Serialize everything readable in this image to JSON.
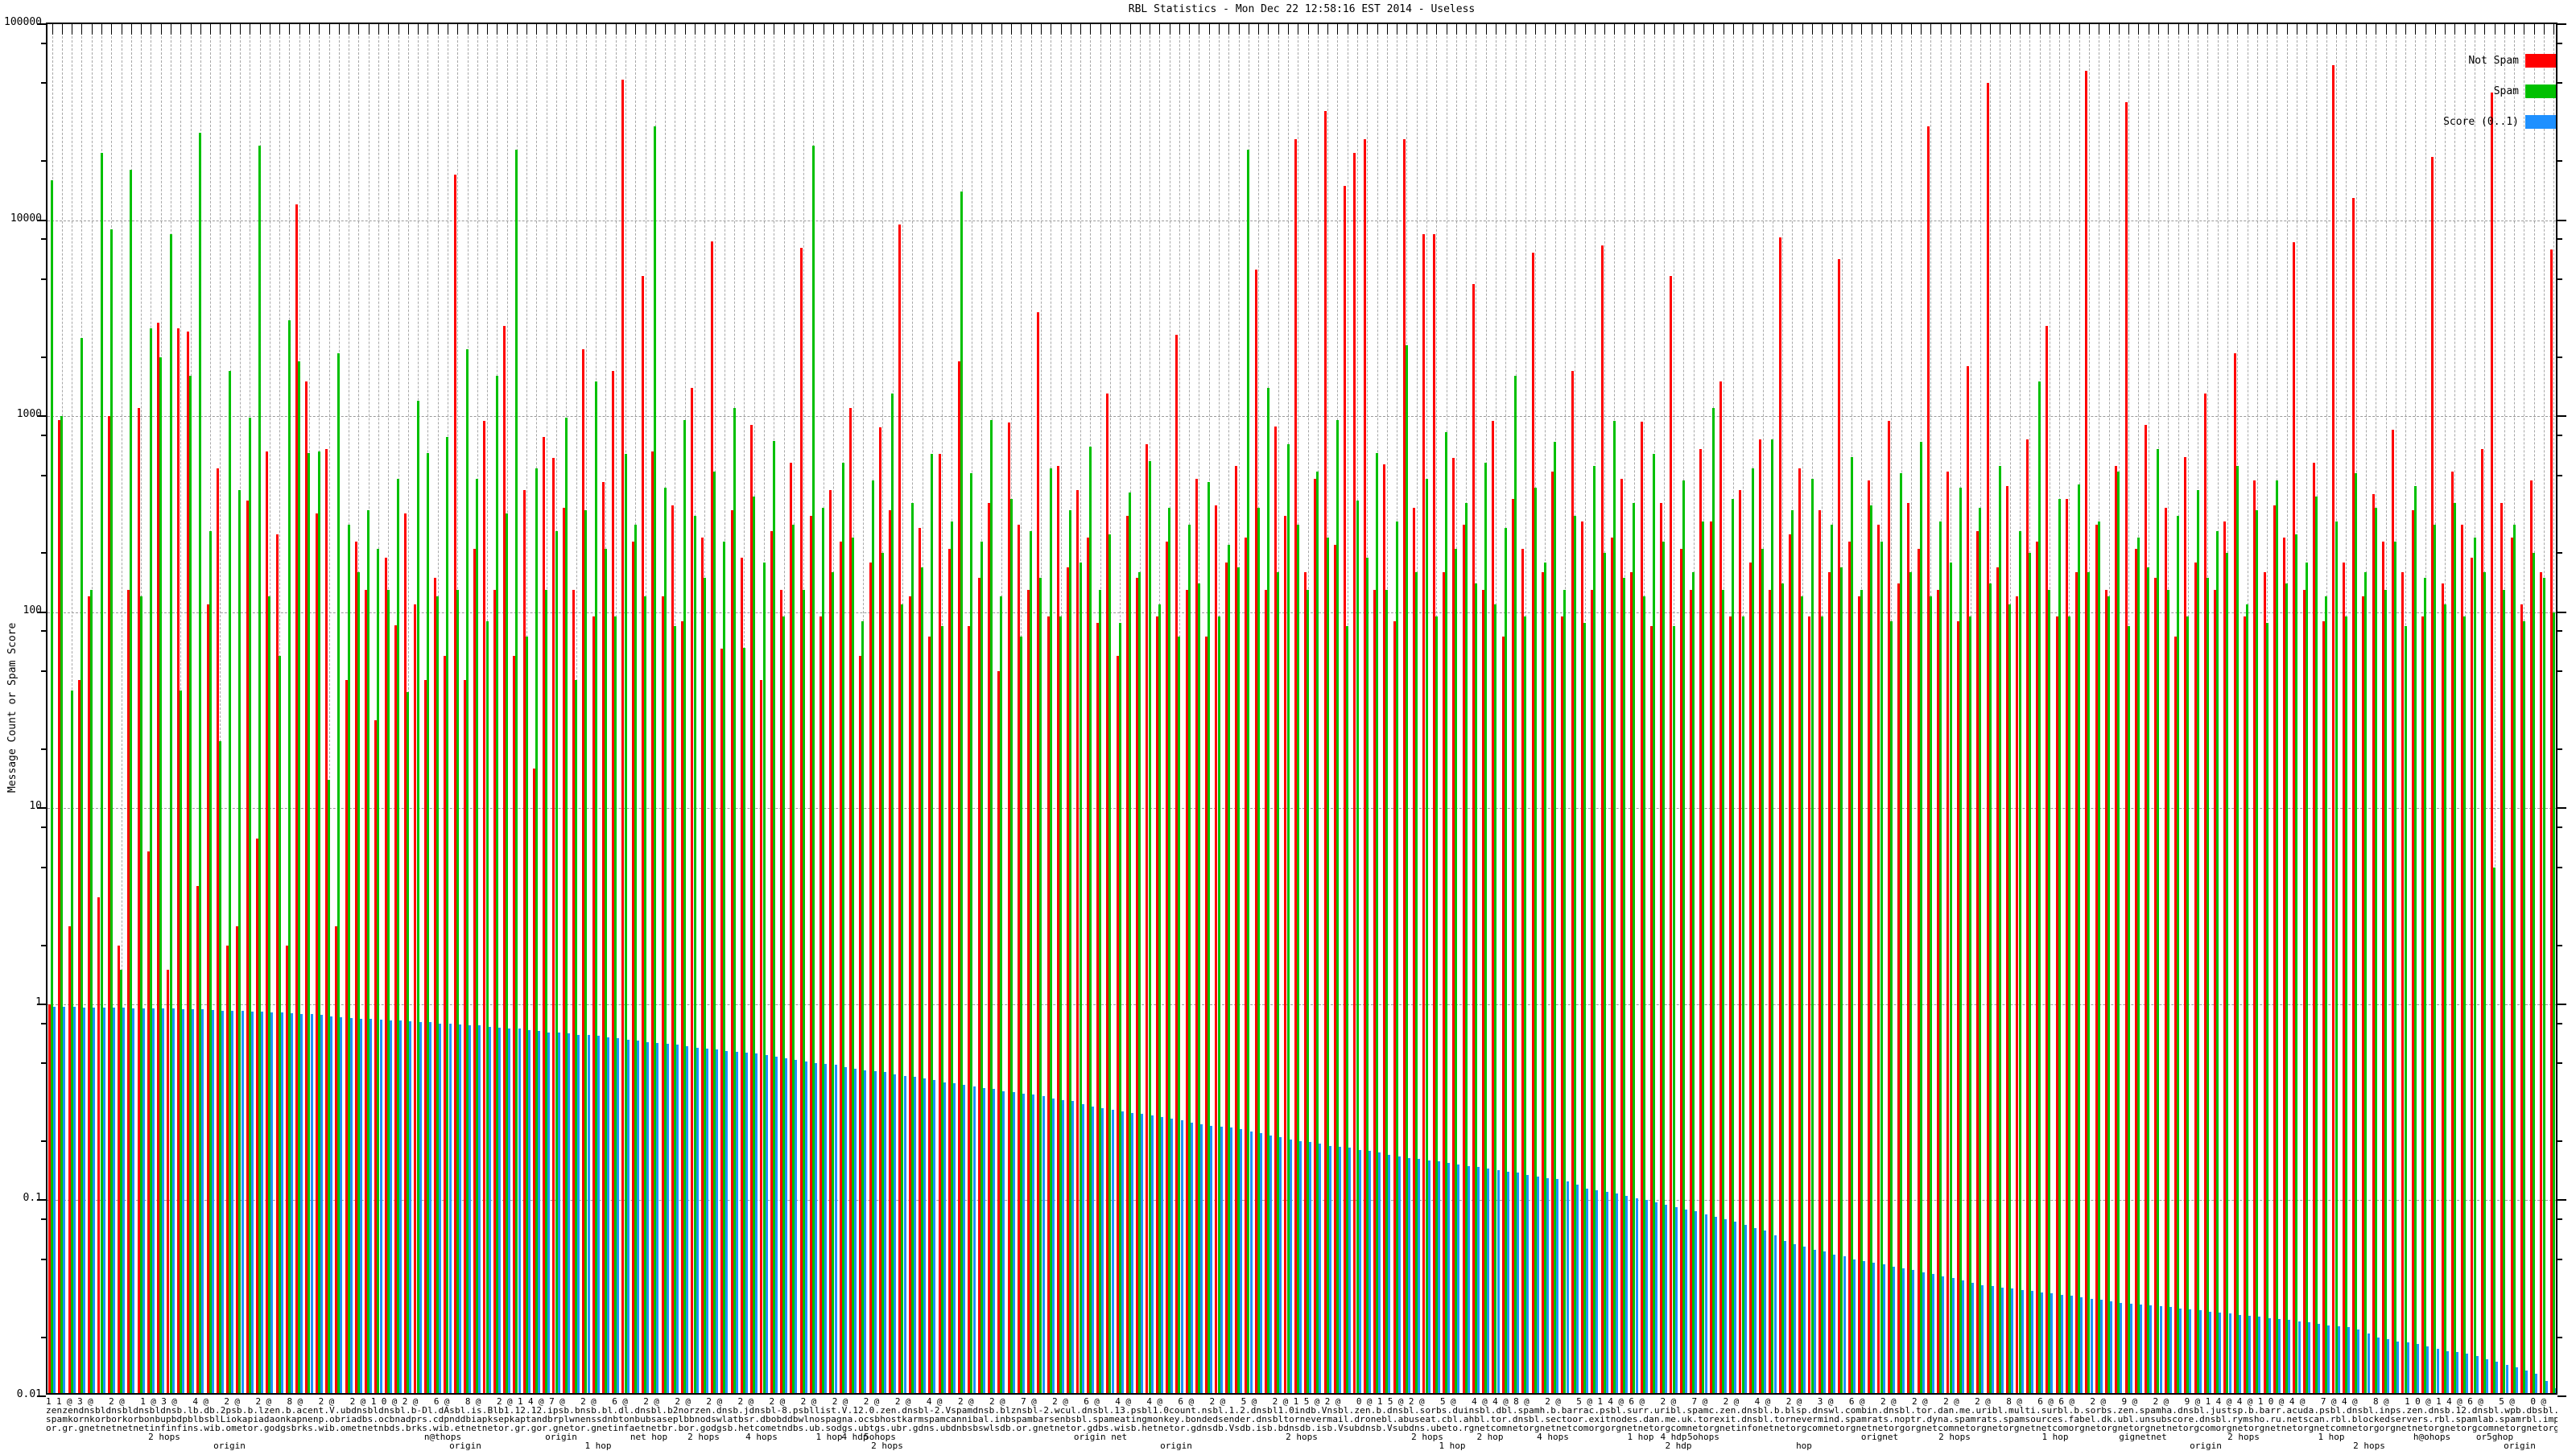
{
  "title": "RBL Statistics - Mon Dec 22 12:58:16 EST 2014 - Useless",
  "yaxis": {
    "label": "Message Count or Spam Score",
    "ticks": [
      {
        "v": 100000,
        "t": "100000"
      },
      {
        "v": 10000,
        "t": "10000"
      },
      {
        "v": 1000,
        "t": "1000"
      },
      {
        "v": 100,
        "t": "100"
      },
      {
        "v": 10,
        "t": "10"
      },
      {
        "v": 1,
        "t": "1"
      },
      {
        "v": 0.1,
        "t": "0.1"
      },
      {
        "v": 0.01,
        "t": "0.01"
      }
    ]
  },
  "legend": [
    {
      "label": "Not Spam",
      "color": "#ff0000"
    },
    {
      "label": "Spam",
      "color": "#00c000"
    },
    {
      "label": "Score (0..1)",
      "color": "#1e90ff"
    }
  ],
  "xaxis": {
    "garble_lines": [
      "11@3@ 2@ 1@3@ 4@ 2@ 2@ 8@ 2@ 2@10@2@ 6@ 8@ 2@14@7@ 2@ 6@ 2@ 2@ 2@ 2@ 2@ 2@ 2@ 2@ 2@ 4@ 2@ 2@ 7@ 2@ 6@ 4@ 4@ 6@ 2@ 5@ 2@15@2@ 0@15@2@ 5@ 4@4@8@ 2@ 5@14@6@ 2@ 7@ 2@ 4@ 2@ 3@ 6@ 2@ 2@ 2@ 2@ 8@ 6@6@ 2@ 9@ 2@ 9@14@4@10@4@ 7@4@ 8@ 10@14@6@ 5@ 0@ 9@",
      "zenzendnsbldnsbldnsbldnsb.lb.db.2psb.b.lzen.b.acent.V.ubdnsbldnsbl.b-Dl.dAsbl.is.Blb1.12.12.ipsb.bnsb.bl.dl.dnsbl.b2norzen.dnsb.jdnsbl-8.psbllist.V.12.0.zen.dnsbl-2.Vspamdnsb.blznsbl-2.wcul.dnsbl.13.psbl1.0count.nsbl.1.2.dnsbl1.0indb.Vnsbl.zen.b.dnsbl.sorbs.duinsbl.dbl.spamh.b.barrac.psbl.surr.uribl.spamc.zen.dnsbl.b.blsp.dnswl.combin.dnsbl.tor.dan.me.uribl.multi.surbl.b.sorbs.zen.spamha.dnsbl.justsp.b.barr.acuda.psbl.dnsbl.inps.zen.dnsb.12.dnsbl.wpb.dbsbl.2.il.dnsb",
      "spamkornkorborkorbonbupbdpblbsblLiokapiadaonkapnenp.obriadbs.ocbnadprs.cdpnddbiapksepkaptandbrplwnenssdnbtonbubsaseplbbnodswlatbsr.dbobddbwlnospagna.ocsbhostkarmspamcannibal.inbspambarsenbsbl.spameatingmonkey.bondedsender.dnsbltornevermail.dronebl.abuseat.cbl.ahbl.tor.dnsbl.sectoor.exitnodes.dan.me.uk.torexit.dnsbl.tornevermind.spamrats.noptr.dyna.spamrats.spamsources.fabel.dk.ubl.unsubscore.dnsbl.rymsho.ru.netscan.rbl.blockedservers.rbl.spamlab.spamrbl.imp.ch",
      "or.gr.gnetnetnetnetinfinfins.wib.ometor.godgsbrks.wib.ometnetnbds.brks.wib.etnetnetor.gr.gor.gnetor.gnetinfaetnetbr.bor.godgsb.hetcometndbs.ub.sodgs.ubtgs.ubr.gdns.ubdnbsbswlsdb.or.gnetnetor.gdbs.wisb.hetnetor.gdnsdb.Vsdb.isb.bdnsdb.isb.Vsubdnsb.Vsubdns.ubeto.rgnetcomnetorgnetnetcomorgorgnetnetorgcomnetorgnetinfonetnetorgcomnetorgnetnetorgorgnetcomnetorgnetorgnetnetcomorgnetorgnetorgnetnetorgcomorgnetorgnetnetorgnetcomnetorgorgnetnetorgnetorgcomnetorgnetorgnetorg"
    ],
    "sub_row1": [
      {
        "f": 0.047,
        "t": "2 hops"
      },
      {
        "f": 0.158,
        "t": "n@thops"
      },
      {
        "f": 0.205,
        "t": "origin"
      },
      {
        "f": 0.24,
        "t": "net hop"
      },
      {
        "f": 0.262,
        "t": "2 hops"
      },
      {
        "f": 0.285,
        "t": "4 hops"
      },
      {
        "f": 0.312,
        "t": "1 hop"
      },
      {
        "f": 0.322,
        "t": "4 hdp"
      },
      {
        "f": 0.332,
        "t": "5ohops"
      },
      {
        "f": 0.42,
        "t": "origin net"
      },
      {
        "f": 0.5,
        "t": "2 hops"
      },
      {
        "f": 0.55,
        "t": "2 hops"
      },
      {
        "f": 0.575,
        "t": "2 hop"
      },
      {
        "f": 0.6,
        "t": "4 hops"
      },
      {
        "f": 0.635,
        "t": "1 hop"
      },
      {
        "f": 0.648,
        "t": "4 hdp"
      },
      {
        "f": 0.66,
        "t": "5ohops"
      },
      {
        "f": 0.73,
        "t": "orignet"
      },
      {
        "f": 0.76,
        "t": "2 hops"
      },
      {
        "f": 0.8,
        "t": "1 hop"
      },
      {
        "f": 0.835,
        "t": "gignetnet"
      },
      {
        "f": 0.875,
        "t": "2 hops"
      },
      {
        "f": 0.91,
        "t": "1 hop"
      },
      {
        "f": 0.95,
        "t": "h@ohops"
      },
      {
        "f": 0.975,
        "t": "or5ghop"
      }
    ],
    "sub_row2": [
      {
        "f": 0.073,
        "t": "origin"
      },
      {
        "f": 0.167,
        "t": "origin"
      },
      {
        "f": 0.22,
        "t": "1 hop"
      },
      {
        "f": 0.335,
        "t": "2 hops"
      },
      {
        "f": 0.45,
        "t": "origin"
      },
      {
        "f": 0.56,
        "t": "1 hop"
      },
      {
        "f": 0.65,
        "t": "2 hdp"
      },
      {
        "f": 0.7,
        "t": "hop"
      },
      {
        "f": 0.86,
        "t": "origin"
      },
      {
        "f": 0.925,
        "t": "2 hops"
      },
      {
        "f": 0.985,
        "t": "origin"
      }
    ]
  },
  "chart_data": {
    "type": "bar",
    "title": "RBL Statistics - Mon Dec 22 12:58:16 EST 2014 - Useless",
    "ylabel": "Message Count or Spam Score",
    "log_scale": true,
    "ylim": [
      0.01,
      100000
    ],
    "grid": true,
    "legend_position": "top-right",
    "series": [
      {
        "name": "Not Spam",
        "color": "#ff0000",
        "values": [
          1,
          960,
          2.5,
          45,
          120,
          3.5,
          1000,
          2,
          130,
          1100,
          6,
          3000,
          1.5,
          2800,
          2700,
          4,
          110,
          540,
          2,
          2.5,
          370,
          7,
          660,
          250,
          2,
          12000,
          1500,
          320,
          680,
          2.5,
          45,
          230,
          130,
          28,
          190,
          86,
          320,
          110,
          45,
          150,
          60,
          17000,
          45,
          210,
          950,
          130,
          2900,
          60,
          420,
          16,
          780,
          610,
          340,
          130,
          2200,
          95,
          460,
          1700,
          52000,
          230,
          5200,
          660,
          120,
          350,
          90,
          1400,
          240,
          7800,
          65,
          330,
          190,
          900,
          45,
          260,
          130,
          580,
          7200,
          310,
          95,
          420,
          230,
          1100,
          60,
          180,
          880,
          330,
          9500,
          120,
          270,
          75,
          640,
          210,
          1900,
          85,
          150,
          360,
          50,
          930,
          280,
          130,
          3400,
          95,
          560,
          170,
          420,
          240,
          88,
          1300,
          60,
          310,
          150,
          720,
          95,
          230,
          2600,
          130,
          480,
          75,
          350,
          180,
          560,
          240,
          5600,
          130,
          890,
          310,
          26000,
          160,
          480,
          36000,
          220,
          15000,
          22000,
          26000,
          130,
          570,
          90,
          26000,
          340,
          8500,
          8500,
          160,
          610,
          280,
          4700,
          130,
          950,
          75,
          380,
          210,
          6800,
          160,
          520,
          95,
          1700,
          290,
          130,
          7400,
          240,
          480,
          160,
          940,
          85,
          360,
          5200,
          210,
          130,
          680,
          290,
          1500,
          95,
          420,
          180,
          760,
          130,
          8200,
          250,
          540,
          95,
          330,
          160,
          6300,
          230,
          120,
          470,
          280,
          950,
          140,
          360,
          210,
          30000,
          130,
          520,
          90,
          1800,
          260,
          50000,
          170,
          440,
          120,
          760,
          230,
          2900,
          95,
          380,
          160,
          58000,
          280,
          130,
          560,
          40000,
          210,
          900,
          150,
          340,
          75,
          620,
          180,
          1300,
          130,
          290,
          2100,
          95,
          470,
          160,
          350,
          240,
          7700,
          130,
          580,
          90,
          62000,
          180,
          13000,
          120,
          400,
          230,
          850,
          160,
          330,
          95,
          21000,
          140,
          520,
          280,
          190,
          680,
          45000,
          360,
          240,
          110,
          470,
          160,
          7100
        ]
      },
      {
        "name": "Spam",
        "color": "#00c000",
        "values": [
          16000,
          1000,
          40,
          2500,
          130,
          22000,
          9000,
          1.5,
          18000,
          120,
          2800,
          2000,
          8500,
          40,
          1600,
          28000,
          260,
          22,
          1700,
          420,
          980,
          24000,
          120,
          60,
          3100,
          1900,
          650,
          660,
          14,
          2100,
          280,
          160,
          330,
          210,
          130,
          480,
          39,
          1200,
          650,
          120,
          780,
          130,
          2200,
          480,
          90,
          1600,
          320,
          23000,
          75,
          540,
          130,
          260,
          980,
          45,
          330,
          1500,
          210,
          95,
          640,
          280,
          120,
          30000,
          430,
          85,
          960,
          310,
          150,
          520,
          230,
          1100,
          66,
          390,
          180,
          750,
          95,
          280,
          130,
          24000,
          340,
          160,
          580,
          240,
          90,
          470,
          200,
          1300,
          110,
          360,
          170,
          640,
          85,
          290,
          14000,
          510,
          230,
          960,
          120,
          380,
          75,
          260,
          150,
          540,
          95,
          330,
          180,
          700,
          130,
          250,
          88,
          410,
          160,
          590,
          110,
          340,
          75,
          280,
          140,
          460,
          95,
          220,
          170,
          23000,
          340,
          1400,
          160,
          720,
          280,
          130,
          520,
          240,
          960,
          85,
          370,
          190,
          650,
          130,
          290,
          2300,
          160,
          480,
          95,
          830,
          210,
          360,
          140,
          580,
          110,
          270,
          1600,
          95,
          430,
          180,
          740,
          130,
          310,
          88,
          560,
          200,
          950,
          150,
          360,
          120,
          640,
          230,
          85,
          470,
          160,
          290,
          1100,
          130,
          380,
          95,
          540,
          210,
          760,
          140,
          330,
          120,
          480,
          95,
          280,
          170,
          620,
          130,
          350,
          230,
          90,
          510,
          160,
          740,
          120,
          290,
          180,
          430,
          95,
          340,
          140,
          560,
          110,
          260,
          200,
          1500,
          130,
          380,
          95,
          450,
          160,
          290,
          120,
          520,
          85,
          240,
          170,
          680,
          130,
          310,
          95,
          420,
          150,
          260,
          200,
          560,
          110,
          330,
          88,
          470,
          140,
          250,
          180,
          390,
          120,
          290,
          95,
          510,
          160,
          340,
          130,
          230,
          85,
          440,
          150,
          280,
          110,
          360,
          95,
          240,
          160,
          5,
          130,
          280,
          90,
          200,
          150,
          100
        ]
      },
      {
        "name": "Score (0..1)",
        "color": "#1e90ff",
        "values": [
          0.97,
          0.97,
          0.97,
          0.965,
          0.965,
          0.96,
          0.96,
          0.96,
          0.955,
          0.955,
          0.95,
          0.95,
          0.95,
          0.945,
          0.945,
          0.94,
          0.935,
          0.93,
          0.93,
          0.925,
          0.92,
          0.915,
          0.91,
          0.905,
          0.9,
          0.895,
          0.89,
          0.88,
          0.87,
          0.86,
          0.85,
          0.845,
          0.84,
          0.835,
          0.83,
          0.825,
          0.82,
          0.815,
          0.81,
          0.8,
          0.795,
          0.79,
          0.785,
          0.78,
          0.77,
          0.76,
          0.755,
          0.75,
          0.74,
          0.73,
          0.72,
          0.715,
          0.71,
          0.7,
          0.695,
          0.69,
          0.68,
          0.67,
          0.66,
          0.65,
          0.64,
          0.635,
          0.63,
          0.62,
          0.61,
          0.6,
          0.595,
          0.59,
          0.58,
          0.57,
          0.565,
          0.56,
          0.55,
          0.54,
          0.53,
          0.52,
          0.51,
          0.5,
          0.495,
          0.49,
          0.48,
          0.47,
          0.46,
          0.455,
          0.45,
          0.44,
          0.43,
          0.425,
          0.42,
          0.41,
          0.4,
          0.395,
          0.39,
          0.38,
          0.375,
          0.37,
          0.36,
          0.355,
          0.35,
          0.345,
          0.34,
          0.33,
          0.325,
          0.32,
          0.31,
          0.3,
          0.295,
          0.29,
          0.285,
          0.28,
          0.275,
          0.27,
          0.265,
          0.26,
          0.255,
          0.25,
          0.245,
          0.24,
          0.238,
          0.235,
          0.23,
          0.225,
          0.22,
          0.215,
          0.21,
          0.205,
          0.2,
          0.198,
          0.195,
          0.19,
          0.188,
          0.185,
          0.18,
          0.178,
          0.175,
          0.17,
          0.168,
          0.165,
          0.162,
          0.16,
          0.158,
          0.155,
          0.152,
          0.15,
          0.148,
          0.145,
          0.142,
          0.14,
          0.138,
          0.135,
          0.132,
          0.13,
          0.128,
          0.125,
          0.12,
          0.115,
          0.112,
          0.11,
          0.108,
          0.105,
          0.102,
          0.1,
          0.098,
          0.095,
          0.092,
          0.09,
          0.088,
          0.085,
          0.082,
          0.08,
          0.078,
          0.075,
          0.072,
          0.07,
          0.066,
          0.062,
          0.06,
          0.058,
          0.056,
          0.055,
          0.053,
          0.052,
          0.05,
          0.049,
          0.048,
          0.047,
          0.046,
          0.045,
          0.044,
          0.043,
          0.042,
          0.041,
          0.04,
          0.039,
          0.038,
          0.037,
          0.0365,
          0.036,
          0.0355,
          0.035,
          0.0345,
          0.034,
          0.0335,
          0.033,
          0.0325,
          0.032,
          0.0315,
          0.031,
          0.0305,
          0.03,
          0.0298,
          0.0295,
          0.029,
          0.0288,
          0.0285,
          0.028,
          0.0278,
          0.0275,
          0.027,
          0.0268,
          0.0265,
          0.026,
          0.0258,
          0.0255,
          0.025,
          0.0248,
          0.0245,
          0.024,
          0.0238,
          0.0235,
          0.023,
          0.0228,
          0.0225,
          0.022,
          0.021,
          0.02,
          0.0195,
          0.019,
          0.0188,
          0.0185,
          0.018,
          0.0175,
          0.017,
          0.0168,
          0.0165,
          0.016,
          0.0155,
          0.015,
          0.0145,
          0.014,
          0.0135,
          0.013,
          0.012,
          0.011
        ]
      }
    ]
  }
}
